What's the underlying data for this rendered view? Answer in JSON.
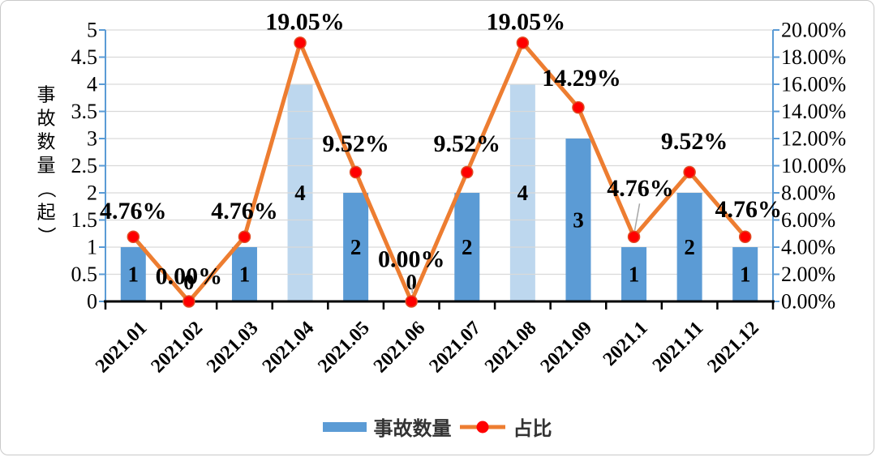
{
  "legend": {
    "bar_label": "事故数量",
    "line_label": "占比"
  },
  "colors": {
    "bar": "#5B9BD5",
    "bar_highlight": "#BDD7EE",
    "line": "#ED7D31",
    "marker": "#FF0000",
    "marker_edge": "#E04B23",
    "grid": "#D9D9D9",
    "axis_vertical": "#5B9BD5",
    "axis_horizontal": "#000000",
    "text": "#000000",
    "leader": "#A6A6A6"
  },
  "chart_data": {
    "type": "combo bar+line, dual axis",
    "categories": [
      "2021.01",
      "2021.02",
      "2021.03",
      "2021.04",
      "2021.05",
      "2021.06",
      "2021.07",
      "2021.08",
      "2021.09",
      "2021.1",
      "2021.11",
      "2021.12"
    ],
    "series": [
      {
        "name": "事故数量",
        "type": "bar",
        "axis": "left",
        "values": [
          1,
          0,
          1,
          4,
          2,
          0,
          2,
          4,
          3,
          1,
          2,
          1
        ],
        "value_labels": [
          "1",
          "0",
          "1",
          "4",
          "2",
          "0",
          "2",
          "4",
          "3",
          "1",
          "2",
          "1"
        ],
        "highlight_indices": [
          3,
          7
        ]
      },
      {
        "name": "占比",
        "type": "line",
        "axis": "right",
        "values_percent": [
          4.76,
          0.0,
          4.76,
          19.05,
          9.52,
          0.0,
          9.52,
          19.05,
          14.29,
          4.76,
          9.52,
          4.76
        ],
        "point_labels": [
          "4.76%",
          "0.00%",
          "4.76%",
          "19.05%",
          "9.52%",
          "0.00%",
          "9.52%",
          "19.05%",
          "14.29%",
          "4.76%",
          "9.52%",
          "4.76%"
        ],
        "leader_line_indices": [
          5,
          9
        ]
      }
    ],
    "left_axis": {
      "title": "事故数量（起）",
      "min": 0,
      "max": 5,
      "step": 0.5,
      "tick_labels": [
        "5",
        "4.5",
        "4",
        "3.5",
        "3",
        "2.5",
        "2",
        "1.5",
        "1",
        "0.5",
        "0"
      ]
    },
    "right_axis": {
      "min": 0,
      "max": 20,
      "step": 2,
      "tick_labels": [
        "20.00%",
        "18.00%",
        "16.00%",
        "14.00%",
        "12.00%",
        "10.00%",
        "8.00%",
        "6.00%",
        "4.00%",
        "2.00%",
        "0.00%"
      ]
    },
    "grid": "horizontal",
    "legend_position": "bottom"
  }
}
